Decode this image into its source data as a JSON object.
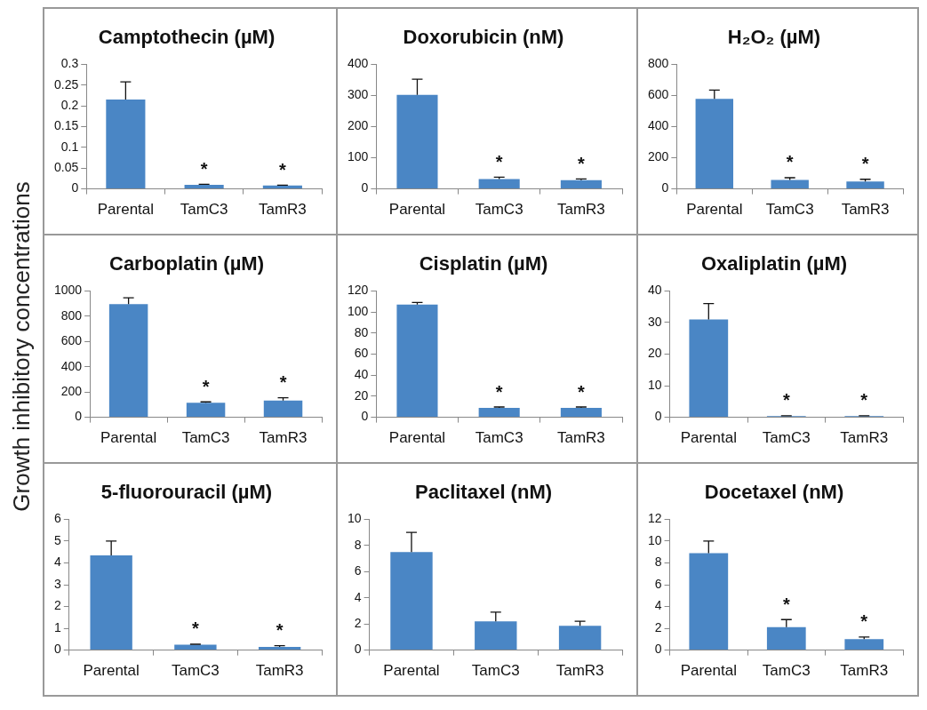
{
  "chart_data": [
    {
      "type": "bar",
      "title": "Camptothecin (µM)",
      "categories": [
        "Parental",
        "TamC3",
        "TamR3"
      ],
      "values": [
        0.215,
        0.01,
        0.008
      ],
      "errors": [
        [
          0.215,
          0.258
        ],
        [
          0.01,
          0.011
        ],
        [
          0.008,
          0.009
        ]
      ],
      "color": "#4a86c5",
      "ylim": [
        0,
        0.3
      ],
      "yticks": [
        0,
        0.05,
        0.1,
        0.15,
        0.2,
        0.25,
        0.3
      ],
      "grid": false,
      "legend": false,
      "annotations": [
        {
          "text": "*",
          "x": "TamC3",
          "y": 0.011
        },
        {
          "text": "*",
          "x": "TamR3",
          "y": 0.009
        }
      ]
    },
    {
      "type": "bar",
      "title": "Doxorubicin (nM)",
      "categories": [
        "Parental",
        "TamC3",
        "TamR3"
      ],
      "values": [
        302,
        32,
        28
      ],
      "errors": [
        [
          302,
          352
        ],
        [
          32,
          38
        ],
        [
          28,
          32
        ]
      ],
      "color": "#4a86c5",
      "ylim": [
        0,
        400
      ],
      "yticks": [
        0,
        100,
        200,
        300,
        400
      ],
      "grid": false,
      "legend": false,
      "annotations": [
        {
          "text": "*",
          "x": "TamC3",
          "y": 38
        },
        {
          "text": "*",
          "x": "TamR3",
          "y": 32
        }
      ]
    },
    {
      "type": "bar",
      "title": "H₂O₂ (µM)",
      "categories": [
        "Parental",
        "TamC3",
        "TamR3"
      ],
      "values": [
        578,
        57,
        48
      ],
      "errors": [
        [
          578,
          635
        ],
        [
          57,
          72
        ],
        [
          48,
          62
        ]
      ],
      "color": "#4a86c5",
      "ylim": [
        0,
        800
      ],
      "yticks": [
        0,
        200,
        400,
        600,
        800
      ],
      "grid": false,
      "legend": false,
      "annotations": [
        {
          "text": "*",
          "x": "TamC3",
          "y": 72
        },
        {
          "text": "*",
          "x": "TamR3",
          "y": 62
        }
      ]
    },
    {
      "type": "bar",
      "title": "Carboplatin (µM)",
      "ylabel": "Growth inhibitory concentrations",
      "categories": [
        "Parental",
        "TamC3",
        "TamR3"
      ],
      "values": [
        895,
        115,
        132
      ],
      "errors": [
        [
          895,
          945
        ],
        [
          115,
          122
        ],
        [
          132,
          155
        ]
      ],
      "color": "#4a86c5",
      "ylim": [
        0,
        1000
      ],
      "yticks": [
        0,
        200,
        400,
        600,
        800,
        1000
      ],
      "grid": false,
      "legend": false,
      "annotations": [
        {
          "text": "*",
          "x": "TamC3",
          "y": 122
        },
        {
          "text": "*",
          "x": "TamR3",
          "y": 155
        }
      ]
    },
    {
      "type": "bar",
      "title": "Cisplatin (µM)",
      "categories": [
        "Parental",
        "TamC3",
        "TamR3"
      ],
      "values": [
        107,
        9,
        9
      ],
      "errors": [
        [
          107,
          109
        ],
        [
          9,
          9.8
        ],
        [
          9,
          9.8
        ]
      ],
      "color": "#4a86c5",
      "ylim": [
        0,
        120
      ],
      "yticks": [
        0,
        20,
        40,
        60,
        80,
        100,
        120
      ],
      "grid": false,
      "legend": false,
      "annotations": [
        {
          "text": "*",
          "x": "TamC3",
          "y": 9.8
        },
        {
          "text": "*",
          "x": "TamR3",
          "y": 9.8
        }
      ]
    },
    {
      "type": "bar",
      "title": "Oxaliplatin (µM)",
      "categories": [
        "Parental",
        "TamC3",
        "TamR3"
      ],
      "values": [
        31,
        0.4,
        0.4
      ],
      "errors": [
        [
          31,
          36
        ],
        [
          0.4,
          0.5
        ],
        [
          0.4,
          0.5
        ]
      ],
      "color": "#4a86c5",
      "ylim": [
        0,
        40
      ],
      "yticks": [
        0,
        10,
        20,
        30,
        40
      ],
      "grid": false,
      "legend": false,
      "annotations": [
        {
          "text": "*",
          "x": "TamC3",
          "y": 0.5
        },
        {
          "text": "*",
          "x": "TamR3",
          "y": 0.5
        }
      ]
    },
    {
      "type": "bar",
      "title": "5-fluorouracil (µM)",
      "categories": [
        "Parental",
        "TamC3",
        "TamR3"
      ],
      "values": [
        4.35,
        0.25,
        0.15
      ],
      "errors": [
        [
          4.35,
          5
        ],
        [
          0.25,
          0.27
        ],
        [
          0.15,
          0.2
        ]
      ],
      "color": "#4a86c5",
      "ylim": [
        0,
        6
      ],
      "yticks": [
        0,
        1,
        2,
        3,
        4,
        5,
        6
      ],
      "grid": false,
      "legend": false,
      "annotations": [
        {
          "text": "*",
          "x": "TamC3",
          "y": 0.27
        },
        {
          "text": "*",
          "x": "TamR3",
          "y": 0.2
        }
      ]
    },
    {
      "type": "bar",
      "title": "Paclitaxel (nM)",
      "categories": [
        "Parental",
        "TamC3",
        "TamR3"
      ],
      "values": [
        7.5,
        2.2,
        1.85
      ],
      "errors": [
        [
          7.5,
          9
        ],
        [
          2.2,
          2.9
        ],
        [
          1.85,
          2.2
        ]
      ],
      "color": "#4a86c5",
      "ylim": [
        0,
        10
      ],
      "yticks": [
        0,
        2,
        4,
        6,
        8,
        10
      ],
      "grid": false,
      "legend": false
    },
    {
      "type": "bar",
      "title": "Docetaxel (nM)",
      "categories": [
        "Parental",
        "TamC3",
        "TamR3"
      ],
      "values": [
        8.9,
        2.1,
        1
      ],
      "errors": [
        [
          8.9,
          10
        ],
        [
          2.1,
          2.8
        ],
        [
          1,
          1.2
        ]
      ],
      "color": "#4a86c5",
      "ylim": [
        0,
        12
      ],
      "yticks": [
        0,
        2,
        4,
        6,
        8,
        10,
        12
      ],
      "grid": false,
      "legend": false,
      "annotations": [
        {
          "text": "*",
          "x": "TamC3",
          "y": 2.8
        },
        {
          "text": "*",
          "x": "TamR3",
          "y": 1.2
        }
      ]
    }
  ]
}
